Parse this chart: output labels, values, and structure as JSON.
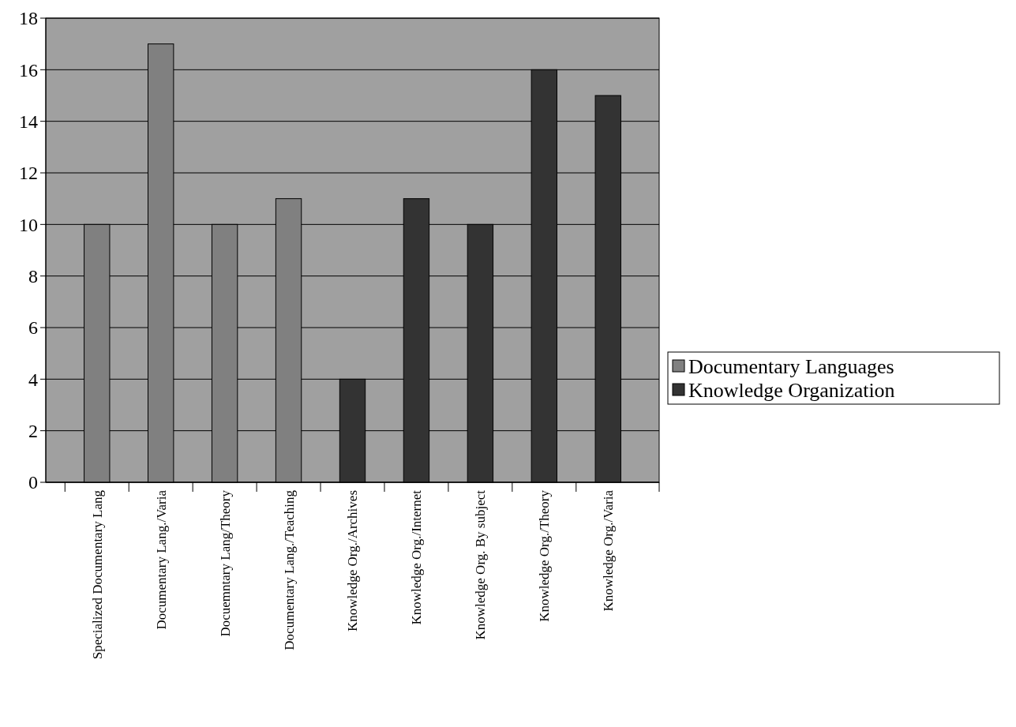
{
  "chart_data": {
    "type": "bar",
    "stacked": true,
    "categories": [
      "Specialized Documentary Lang",
      "Documentary Lang./Varia",
      "Docuemntary Lang/Theory",
      "Documentary Lang./Teaching",
      "Knowledge Org./Archives",
      "Knowledge Org./Internet",
      "Knowledge Org. By subject",
      "Knowledge Org./Theory",
      "Knowledge Org./Varia"
    ],
    "series": [
      {
        "name": "Documentary Languages",
        "color": "#808080",
        "values": [
          10,
          17,
          10,
          11,
          null,
          null,
          null,
          null,
          null
        ]
      },
      {
        "name": "Knowledge Organization",
        "color": "#333333",
        "values": [
          null,
          null,
          null,
          null,
          4,
          11,
          10,
          16,
          15
        ]
      }
    ],
    "ylim": [
      0,
      18
    ],
    "yticks": [
      0,
      2,
      4,
      6,
      8,
      10,
      12,
      14,
      16,
      18
    ],
    "grid": "y",
    "legend": "right"
  }
}
